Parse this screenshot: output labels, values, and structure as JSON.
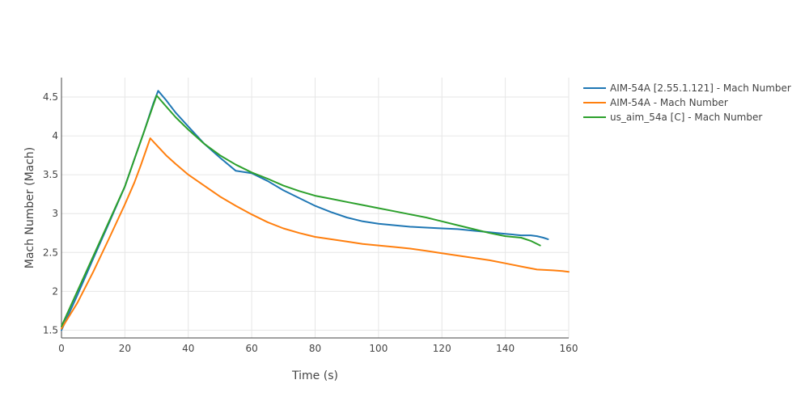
{
  "chart_data": {
    "type": "line",
    "xlabel": "Time (s)",
    "ylabel": "Mach Number (Mach)",
    "xlim": [
      0,
      160
    ],
    "ylim": [
      1.4,
      4.75
    ],
    "xticks": [
      0,
      20,
      40,
      60,
      80,
      100,
      120,
      140,
      160
    ],
    "yticks": [
      1.5,
      2,
      2.5,
      3,
      3.5,
      4,
      4.5
    ],
    "ytick_labels": [
      "1.5",
      "2",
      "2.5",
      "3",
      "3.5",
      "4",
      "4.5"
    ],
    "grid": true,
    "legend_position": "top-right",
    "series": [
      {
        "name": "AIM-54A [2.55.1.121] - Mach Number",
        "color": "#1f77b4",
        "points": [
          [
            0,
            1.5
          ],
          [
            5,
            1.95
          ],
          [
            10,
            2.42
          ],
          [
            15,
            2.88
          ],
          [
            20,
            3.35
          ],
          [
            23,
            3.7
          ],
          [
            26,
            4.05
          ],
          [
            29,
            4.42
          ],
          [
            30.5,
            4.58
          ],
          [
            33,
            4.46
          ],
          [
            36,
            4.3
          ],
          [
            40,
            4.12
          ],
          [
            45,
            3.9
          ],
          [
            50,
            3.72
          ],
          [
            55,
            3.55
          ],
          [
            60,
            3.52
          ],
          [
            65,
            3.42
          ],
          [
            70,
            3.3
          ],
          [
            75,
            3.2
          ],
          [
            80,
            3.1
          ],
          [
            85,
            3.02
          ],
          [
            90,
            2.95
          ],
          [
            95,
            2.9
          ],
          [
            100,
            2.87
          ],
          [
            105,
            2.85
          ],
          [
            110,
            2.83
          ],
          [
            115,
            2.82
          ],
          [
            120,
            2.81
          ],
          [
            125,
            2.8
          ],
          [
            130,
            2.78
          ],
          [
            135,
            2.76
          ],
          [
            140,
            2.74
          ],
          [
            145,
            2.72
          ],
          [
            148,
            2.72
          ],
          [
            150,
            2.71
          ],
          [
            152,
            2.69
          ],
          [
            153.5,
            2.67
          ]
        ]
      },
      {
        "name": "AIM-54A - Mach Number",
        "color": "#ff7f0e",
        "points": [
          [
            0,
            1.52
          ],
          [
            5,
            1.85
          ],
          [
            10,
            2.25
          ],
          [
            15,
            2.68
          ],
          [
            20,
            3.12
          ],
          [
            23,
            3.4
          ],
          [
            25,
            3.62
          ],
          [
            28,
            3.97
          ],
          [
            30,
            3.88
          ],
          [
            33,
            3.75
          ],
          [
            36,
            3.64
          ],
          [
            40,
            3.5
          ],
          [
            45,
            3.36
          ],
          [
            50,
            3.22
          ],
          [
            55,
            3.1
          ],
          [
            60,
            2.99
          ],
          [
            65,
            2.89
          ],
          [
            70,
            2.81
          ],
          [
            75,
            2.75
          ],
          [
            80,
            2.7
          ],
          [
            85,
            2.67
          ],
          [
            90,
            2.64
          ],
          [
            95,
            2.61
          ],
          [
            100,
            2.59
          ],
          [
            105,
            2.57
          ],
          [
            110,
            2.55
          ],
          [
            115,
            2.52
          ],
          [
            120,
            2.49
          ],
          [
            125,
            2.46
          ],
          [
            130,
            2.43
          ],
          [
            135,
            2.4
          ],
          [
            140,
            2.36
          ],
          [
            145,
            2.32
          ],
          [
            150,
            2.28
          ],
          [
            155,
            2.27
          ],
          [
            158,
            2.26
          ],
          [
            160,
            2.25
          ]
        ]
      },
      {
        "name": "us_aim_54a [C] - Mach Number",
        "color": "#2ca02c",
        "points": [
          [
            0,
            1.55
          ],
          [
            5,
            2.0
          ],
          [
            10,
            2.45
          ],
          [
            15,
            2.9
          ],
          [
            20,
            3.35
          ],
          [
            23,
            3.7
          ],
          [
            26,
            4.05
          ],
          [
            29,
            4.4
          ],
          [
            30,
            4.52
          ],
          [
            33,
            4.38
          ],
          [
            36,
            4.24
          ],
          [
            40,
            4.08
          ],
          [
            45,
            3.9
          ],
          [
            50,
            3.75
          ],
          [
            55,
            3.63
          ],
          [
            60,
            3.53
          ],
          [
            65,
            3.45
          ],
          [
            70,
            3.36
          ],
          [
            75,
            3.29
          ],
          [
            80,
            3.23
          ],
          [
            85,
            3.19
          ],
          [
            90,
            3.15
          ],
          [
            95,
            3.11
          ],
          [
            100,
            3.07
          ],
          [
            105,
            3.03
          ],
          [
            110,
            2.99
          ],
          [
            115,
            2.95
          ],
          [
            120,
            2.9
          ],
          [
            125,
            2.85
          ],
          [
            130,
            2.8
          ],
          [
            135,
            2.75
          ],
          [
            140,
            2.71
          ],
          [
            145,
            2.69
          ],
          [
            148,
            2.65
          ],
          [
            151,
            2.59
          ]
        ]
      }
    ]
  }
}
